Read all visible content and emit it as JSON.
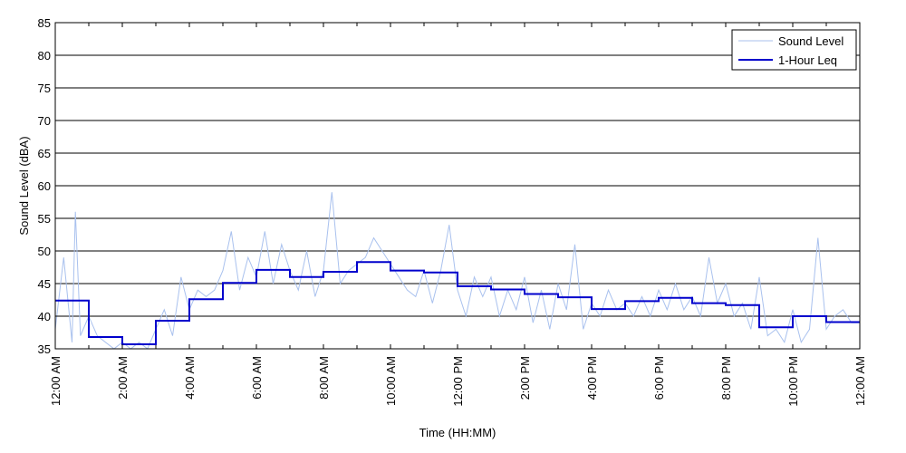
{
  "chart_data": {
    "type": "line",
    "xlabel": "Time (HH:MM)",
    "ylabel": "Sound Level (dBA)",
    "ylim": [
      35,
      85
    ],
    "xlim_hours": [
      0,
      24
    ],
    "y_ticks": [
      35,
      40,
      45,
      50,
      55,
      60,
      65,
      70,
      75,
      80,
      85
    ],
    "x_ticks": [
      {
        "hour": 0,
        "label": "12:00 AM"
      },
      {
        "hour": 2,
        "label": "2:00 AM"
      },
      {
        "hour": 4,
        "label": "4:00 AM"
      },
      {
        "hour": 6,
        "label": "6:00 AM"
      },
      {
        "hour": 8,
        "label": "8:00 AM"
      },
      {
        "hour": 10,
        "label": "10:00 AM"
      },
      {
        "hour": 12,
        "label": "12:00 PM"
      },
      {
        "hour": 14,
        "label": "2:00 PM"
      },
      {
        "hour": 16,
        "label": "4:00 PM"
      },
      {
        "hour": 18,
        "label": "6:00 PM"
      },
      {
        "hour": 20,
        "label": "8:00 PM"
      },
      {
        "hour": 22,
        "label": "10:00 PM"
      },
      {
        "hour": 24,
        "label": "12:00 AM"
      }
    ],
    "minor_tick_hours": [
      1,
      3,
      5,
      7,
      9,
      11,
      13,
      15,
      17,
      19,
      21,
      23
    ],
    "grid": "horizontal",
    "legend_position": "top-right",
    "series": [
      {
        "name": "Sound Level",
        "color": "#a9c1ee",
        "style": "thin-line",
        "x_hours": [
          0,
          0.25,
          0.5,
          0.6,
          0.75,
          1.0,
          1.25,
          1.5,
          1.75,
          2.0,
          2.25,
          2.5,
          2.75,
          3.0,
          3.25,
          3.5,
          3.75,
          4.0,
          4.25,
          4.5,
          4.75,
          5.0,
          5.25,
          5.5,
          5.75,
          6.0,
          6.25,
          6.5,
          6.75,
          7.0,
          7.25,
          7.5,
          7.75,
          8.0,
          8.25,
          8.5,
          8.75,
          9.0,
          9.25,
          9.5,
          9.75,
          10.0,
          10.25,
          10.5,
          10.75,
          11.0,
          11.25,
          11.5,
          11.75,
          12.0,
          12.25,
          12.5,
          12.75,
          13.0,
          13.25,
          13.5,
          13.75,
          14.0,
          14.25,
          14.5,
          14.75,
          15.0,
          15.25,
          15.5,
          15.75,
          16.0,
          16.25,
          16.5,
          16.75,
          17.0,
          17.25,
          17.5,
          17.75,
          18.0,
          18.25,
          18.5,
          18.75,
          19.0,
          19.25,
          19.5,
          19.75,
          20.0,
          20.25,
          20.5,
          20.75,
          21.0,
          21.25,
          21.5,
          21.75,
          22.0,
          22.25,
          22.5,
          22.75,
          23.0,
          23.25,
          23.5,
          23.75,
          24.0
        ],
        "values": [
          38,
          49,
          36,
          56,
          37,
          40,
          37,
          36,
          35,
          36,
          35,
          36,
          35,
          38,
          41,
          37,
          46,
          41,
          44,
          43,
          44,
          47,
          53,
          44,
          49,
          46,
          53,
          45,
          51,
          47,
          44,
          50,
          43,
          47,
          59,
          45,
          47,
          48,
          49,
          52,
          50,
          48,
          46,
          44,
          43,
          47,
          42,
          47,
          54,
          44,
          40,
          46,
          43,
          46,
          40,
          44,
          41,
          46,
          39,
          44,
          38,
          45,
          41,
          51,
          38,
          42,
          40,
          44,
          41,
          42,
          40,
          43,
          40,
          44,
          41,
          45,
          41,
          43,
          40,
          49,
          42,
          45,
          40,
          42,
          38,
          46,
          37,
          38,
          36,
          41,
          36,
          38,
          52,
          38,
          40,
          41,
          39,
          39
        ]
      },
      {
        "name": "1-Hour Leq",
        "color": "#0000cc",
        "style": "step",
        "step_hours": [
          0,
          1,
          2,
          3,
          4,
          5,
          6,
          7,
          8,
          9,
          10,
          11,
          12,
          13,
          14,
          15,
          16,
          17,
          18,
          19,
          20,
          21,
          22,
          23
        ],
        "values": [
          42.4,
          36.8,
          35.7,
          39.3,
          42.6,
          45.1,
          47.1,
          46.0,
          46.8,
          48.3,
          47.0,
          46.7,
          44.6,
          44.1,
          43.4,
          42.9,
          41.1,
          42.3,
          42.8,
          42.0,
          41.7,
          38.3,
          40.0,
          39.1
        ]
      }
    ]
  }
}
